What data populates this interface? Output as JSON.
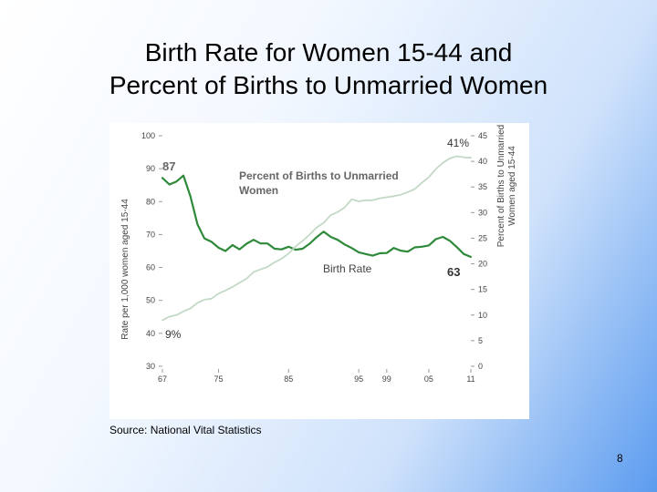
{
  "slide": {
    "title_line1": "Birth Rate for Women 15-44 and",
    "title_line2": "Percent of Births to Unmarried Women",
    "source": "Source: National Vital Statistics",
    "page_number": "8"
  },
  "chart_data": {
    "type": "line",
    "title": "Birth Rate for Women 15-44 and Percent of Births to Unmarried Women",
    "x_tick_labels": [
      "67",
      "75",
      "85",
      "95",
      "99",
      "05",
      "11"
    ],
    "x_tick_years": [
      1967,
      1975,
      1985,
      1995,
      1999,
      2005,
      2011
    ],
    "xlim": [
      1967,
      2011
    ],
    "ylabel_left": "Rate per 1,000 women aged 15-44",
    "ylim_left": [
      30,
      100
    ],
    "yticks_left": [
      30,
      40,
      50,
      60,
      70,
      80,
      90,
      100
    ],
    "ylabel_right": "Percent of Births to Unmarried Women aged 15-44",
    "ylim_right": [
      0,
      45
    ],
    "yticks_right": [
      0,
      5,
      10,
      15,
      20,
      25,
      30,
      35,
      40,
      45
    ],
    "grid": false,
    "series": [
      {
        "name": "Birth Rate",
        "axis": "left",
        "color": "#2e8a3a",
        "x": [
          1967,
          1968,
          1969,
          1970,
          1971,
          1972,
          1973,
          1974,
          1975,
          1976,
          1977,
          1978,
          1979,
          1980,
          1981,
          1982,
          1983,
          1984,
          1985,
          1986,
          1987,
          1988,
          1989,
          1990,
          1991,
          1992,
          1993,
          1994,
          1995,
          1996,
          1997,
          1998,
          1999,
          2000,
          2001,
          2002,
          2003,
          2004,
          2005,
          2006,
          2007,
          2008,
          2009,
          2010,
          2011
        ],
        "y": [
          87.2,
          85.2,
          86.1,
          87.9,
          81.6,
          73.1,
          68.8,
          67.8,
          66.0,
          65.0,
          66.8,
          65.5,
          67.2,
          68.4,
          67.3,
          67.3,
          65.7,
          65.5,
          66.3,
          65.4,
          65.7,
          67.2,
          69.2,
          70.9,
          69.3,
          68.4,
          67.0,
          65.9,
          64.6,
          64.1,
          63.6,
          64.3,
          64.4,
          65.9,
          65.1,
          64.8,
          66.1,
          66.3,
          66.7,
          68.6,
          69.3,
          68.1,
          66.2,
          64.1,
          63.2
        ]
      },
      {
        "name": "Percent of Births to Unmarried Women",
        "axis": "right",
        "color": "#c3d9c6",
        "x": [
          1967,
          1968,
          1969,
          1970,
          1971,
          1972,
          1973,
          1974,
          1975,
          1976,
          1977,
          1978,
          1979,
          1980,
          1981,
          1982,
          1983,
          1984,
          1985,
          1986,
          1987,
          1988,
          1989,
          1990,
          1991,
          1992,
          1993,
          1994,
          1995,
          1996,
          1997,
          1998,
          1999,
          2000,
          2001,
          2002,
          2003,
          2004,
          2005,
          2006,
          2007,
          2008,
          2009,
          2010,
          2011
        ],
        "y": [
          9.0,
          9.7,
          10.0,
          10.7,
          11.3,
          12.4,
          13.0,
          13.2,
          14.2,
          14.8,
          15.5,
          16.3,
          17.1,
          18.4,
          18.9,
          19.4,
          20.3,
          21.0,
          22.0,
          23.4,
          24.5,
          25.7,
          27.1,
          28.0,
          29.5,
          30.1,
          31.0,
          32.6,
          32.2,
          32.4,
          32.4,
          32.8,
          33.0,
          33.2,
          33.5,
          34.0,
          34.6,
          35.8,
          36.9,
          38.5,
          39.7,
          40.6,
          41.0,
          40.8,
          40.7
        ]
      }
    ],
    "annotations": [
      {
        "text": "87",
        "series": "Birth Rate"
      },
      {
        "text": "Percent of Births to Unmarried Women",
        "series": "Percent of Births to Unmarried Women"
      },
      {
        "text": "Birth Rate",
        "series": "Birth Rate"
      },
      {
        "text": "63",
        "series": "Birth Rate"
      },
      {
        "text": "41%",
        "series": "Percent of Births to Unmarried Women"
      },
      {
        "text": "9%",
        "series": "Percent of Births to Unmarried Women"
      }
    ]
  }
}
